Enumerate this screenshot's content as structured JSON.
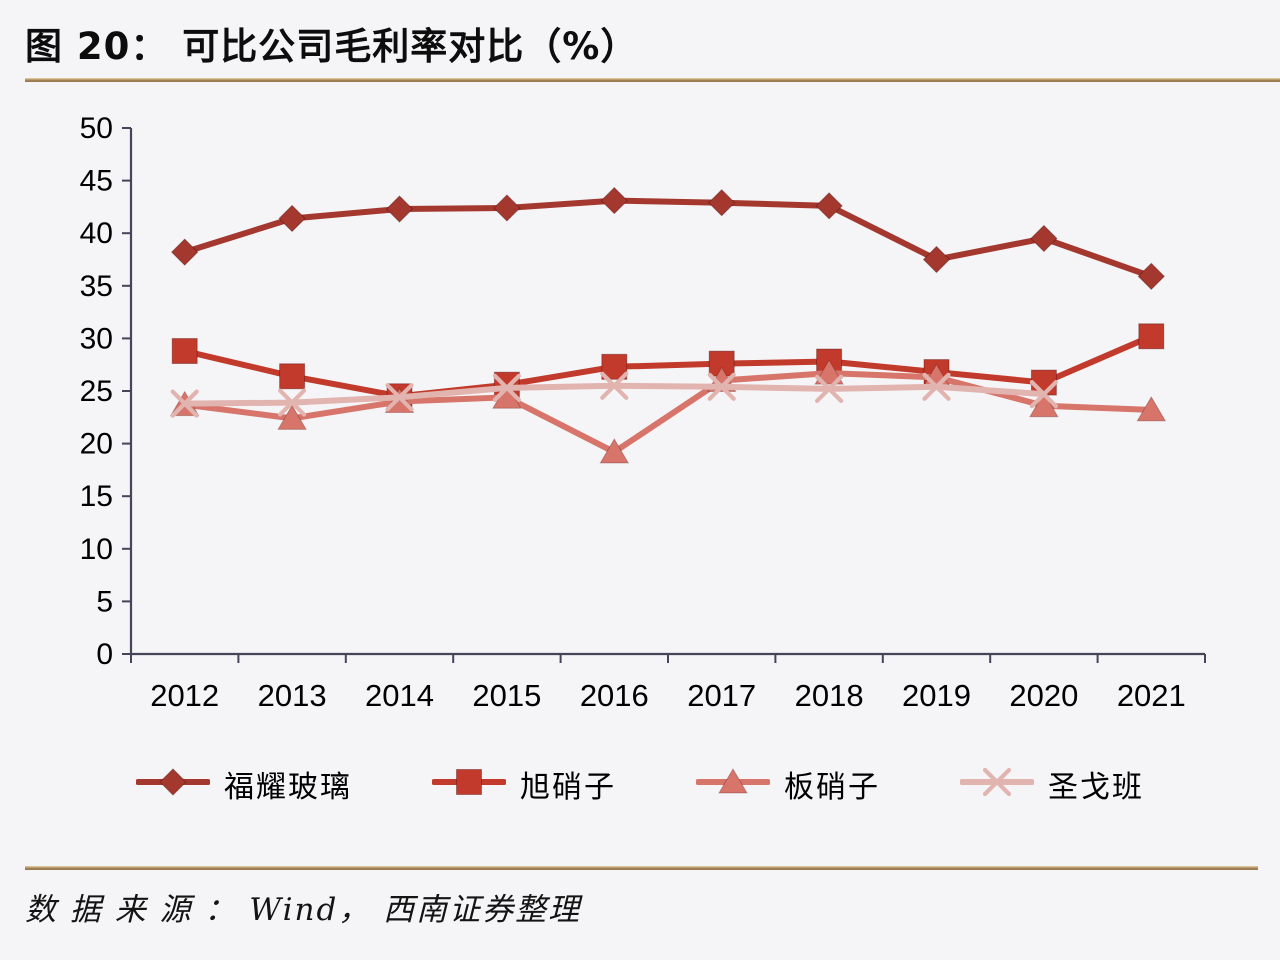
{
  "figure": {
    "title": "图 20： 可比公司毛利率对比（%）",
    "source_note": "数 据 来 源 ： Wind， 西南证券整理"
  },
  "colors": {
    "background": "#f5f5f7",
    "divider_tan": "#a5825a",
    "axis": "#44445a",
    "tick_text": "#000000"
  },
  "chart_data": {
    "type": "line",
    "title": "可比公司毛利率对比（%）",
    "xlabel": "",
    "ylabel": "",
    "categories": [
      "2012",
      "2013",
      "2014",
      "2015",
      "2016",
      "2017",
      "2018",
      "2019",
      "2020",
      "2021"
    ],
    "series": [
      {
        "name": "福耀玻璃",
        "marker": "diamond",
        "color": "#a4382f",
        "values": [
          38.2,
          41.4,
          42.3,
          42.4,
          43.1,
          42.9,
          42.6,
          37.5,
          39.5,
          35.9
        ]
      },
      {
        "name": "旭硝子",
        "marker": "square",
        "color": "#c23a2c",
        "values": [
          28.8,
          26.4,
          24.5,
          25.6,
          27.3,
          27.6,
          27.8,
          26.8,
          25.8,
          30.2
        ]
      },
      {
        "name": "板硝子",
        "marker": "triangle",
        "color": "#d7756b",
        "values": [
          23.7,
          22.4,
          24.0,
          24.4,
          19.2,
          26.0,
          26.7,
          26.3,
          23.6,
          23.2
        ]
      },
      {
        "name": "圣戈班",
        "marker": "x",
        "color": "#e2b4b0",
        "values": [
          23.8,
          23.9,
          24.4,
          25.3,
          25.5,
          25.4,
          25.2,
          25.4,
          24.7,
          null
        ]
      }
    ],
    "ylim": [
      0,
      50
    ],
    "ytick_step": 5,
    "yticks": [
      0,
      5,
      10,
      15,
      20,
      25,
      30,
      35,
      40,
      45,
      50
    ],
    "grid": false,
    "legend_position": "bottom"
  }
}
